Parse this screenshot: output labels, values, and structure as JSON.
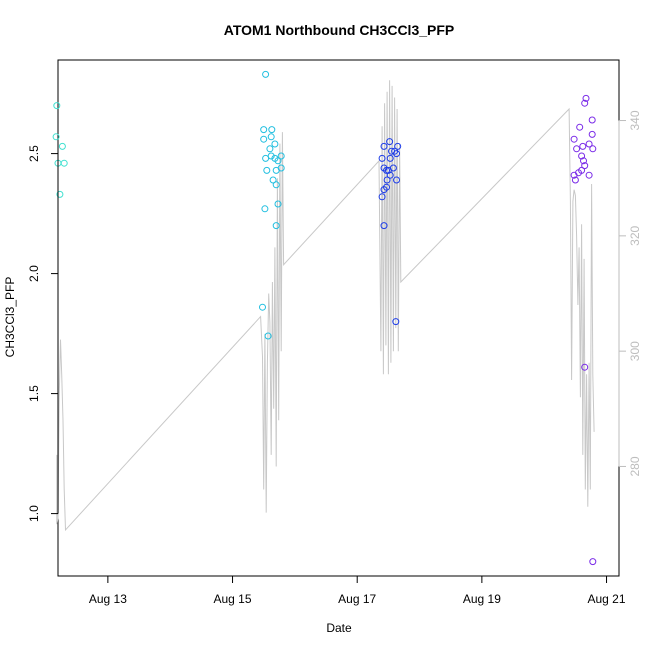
{
  "chart_data": {
    "type": "scatter",
    "title": "ATOM1 Northbound CH3CCl3_PFP",
    "xlabel": "Date",
    "ylabel": "CH3CCl3_PFP",
    "grid": false,
    "legend": "none",
    "x_unit": "days since Aug 12 00:00",
    "xlim": [
      12.2,
      21.2
    ],
    "ylim": [
      0.74,
      2.89
    ],
    "y2lim": [
      261.0,
      350.5
    ],
    "x_ticks": [
      {
        "value": 13,
        "label": "Aug 13"
      },
      {
        "value": 15,
        "label": "Aug 15"
      },
      {
        "value": 17,
        "label": "Aug 17"
      },
      {
        "value": 19,
        "label": "Aug 19"
      },
      {
        "value": 21,
        "label": "Aug 21"
      }
    ],
    "y_ticks": [
      {
        "value": 1.0,
        "label": "1.0"
      },
      {
        "value": 1.5,
        "label": "1.5"
      },
      {
        "value": 2.0,
        "label": "2.0"
      },
      {
        "value": 2.5,
        "label": "2.5"
      }
    ],
    "y2_ticks": [
      {
        "value": 280,
        "label": "280"
      },
      {
        "value": 300,
        "label": "300"
      },
      {
        "value": 320,
        "label": "320"
      },
      {
        "value": 340,
        "label": "340"
      }
    ],
    "series": [
      {
        "color": "#40e0d0",
        "points": [
          [
            12.18,
            2.7
          ],
          [
            12.17,
            2.57
          ],
          [
            12.27,
            2.53
          ],
          [
            12.2,
            2.46
          ],
          [
            12.3,
            2.46
          ],
          [
            12.23,
            2.33
          ]
        ]
      },
      {
        "color": "#22bfe0",
        "points": [
          [
            15.53,
            2.83
          ],
          [
            15.5,
            2.6
          ],
          [
            15.63,
            2.6
          ],
          [
            15.5,
            2.56
          ],
          [
            15.62,
            2.57
          ],
          [
            15.68,
            2.54
          ],
          [
            15.6,
            2.52
          ],
          [
            15.53,
            2.48
          ],
          [
            15.62,
            2.49
          ],
          [
            15.68,
            2.48
          ],
          [
            15.78,
            2.49
          ],
          [
            15.73,
            2.47
          ],
          [
            15.55,
            2.43
          ],
          [
            15.7,
            2.43
          ],
          [
            15.78,
            2.44
          ],
          [
            15.65,
            2.39
          ],
          [
            15.7,
            2.37
          ],
          [
            15.73,
            2.29
          ],
          [
            15.52,
            2.27
          ],
          [
            15.7,
            2.2
          ],
          [
            15.48,
            1.86
          ],
          [
            15.57,
            1.74
          ]
        ]
      },
      {
        "color": "#1f3ee8",
        "points": [
          [
            17.52,
            2.55
          ],
          [
            17.43,
            2.53
          ],
          [
            17.65,
            2.53
          ],
          [
            17.55,
            2.51
          ],
          [
            17.6,
            2.51
          ],
          [
            17.63,
            2.5
          ],
          [
            17.4,
            2.48
          ],
          [
            17.53,
            2.48
          ],
          [
            17.43,
            2.44
          ],
          [
            17.5,
            2.43
          ],
          [
            17.58,
            2.44
          ],
          [
            17.47,
            2.43
          ],
          [
            17.53,
            2.41
          ],
          [
            17.48,
            2.39
          ],
          [
            17.63,
            2.39
          ],
          [
            17.47,
            2.36
          ],
          [
            17.43,
            2.35
          ],
          [
            17.4,
            2.32
          ],
          [
            17.43,
            2.2
          ],
          [
            17.62,
            1.8
          ]
        ]
      },
      {
        "color": "#7a2be8",
        "points": [
          [
            20.67,
            2.73
          ],
          [
            20.65,
            2.71
          ],
          [
            20.77,
            2.64
          ],
          [
            20.57,
            2.61
          ],
          [
            20.77,
            2.58
          ],
          [
            20.48,
            2.56
          ],
          [
            20.72,
            2.54
          ],
          [
            20.52,
            2.52
          ],
          [
            20.62,
            2.53
          ],
          [
            20.78,
            2.52
          ],
          [
            20.6,
            2.49
          ],
          [
            20.63,
            2.47
          ],
          [
            20.65,
            2.45
          ],
          [
            20.6,
            2.43
          ],
          [
            20.55,
            2.42
          ],
          [
            20.48,
            2.41
          ],
          [
            20.72,
            2.41
          ],
          [
            20.5,
            2.39
          ],
          [
            20.65,
            1.61
          ],
          [
            20.78,
            0.8
          ]
        ]
      }
    ],
    "secondary_series": {
      "name": "",
      "color": "#c8c8c8",
      "axis": "right",
      "points": [
        [
          12.18,
          282
        ],
        [
          12.18,
          270
        ],
        [
          12.2,
          271
        ],
        [
          12.22,
          292
        ],
        [
          12.24,
          302
        ],
        [
          12.26,
          296
        ],
        [
          12.28,
          288
        ],
        [
          12.3,
          276
        ],
        [
          12.32,
          269
        ],
        [
          15.45,
          306
        ],
        [
          15.48,
          299
        ],
        [
          15.5,
          276
        ],
        [
          15.52,
          303
        ],
        [
          15.54,
          272
        ],
        [
          15.56,
          298
        ],
        [
          15.58,
          310
        ],
        [
          15.6,
          305
        ],
        [
          15.62,
          282
        ],
        [
          15.64,
          312
        ],
        [
          15.66,
          290
        ],
        [
          15.68,
          318
        ],
        [
          15.7,
          280
        ],
        [
          15.72,
          330
        ],
        [
          15.74,
          288
        ],
        [
          15.76,
          336
        ],
        [
          15.78,
          300
        ],
        [
          15.8,
          338
        ],
        [
          15.82,
          315
        ],
        [
          17.35,
          333
        ],
        [
          17.38,
          300
        ],
        [
          17.4,
          339
        ],
        [
          17.42,
          296
        ],
        [
          17.44,
          343
        ],
        [
          17.46,
          301
        ],
        [
          17.48,
          345
        ],
        [
          17.5,
          296
        ],
        [
          17.52,
          347
        ],
        [
          17.54,
          298
        ],
        [
          17.56,
          346
        ],
        [
          17.58,
          300
        ],
        [
          17.6,
          344
        ],
        [
          17.62,
          304
        ],
        [
          17.64,
          342
        ],
        [
          17.66,
          300
        ],
        [
          17.68,
          336
        ],
        [
          17.7,
          312
        ],
        [
          20.4,
          342
        ],
        [
          20.42,
          326
        ],
        [
          20.44,
          295
        ],
        [
          20.46,
          326
        ],
        [
          20.48,
          328
        ],
        [
          20.5,
          327
        ],
        [
          20.52,
          320
        ],
        [
          20.54,
          308
        ],
        [
          20.56,
          318
        ],
        [
          20.58,
          292
        ],
        [
          20.6,
          322
        ],
        [
          20.62,
          282
        ],
        [
          20.64,
          316
        ],
        [
          20.66,
          276
        ],
        [
          20.68,
          296
        ],
        [
          20.7,
          273
        ],
        [
          20.72,
          298
        ],
        [
          20.74,
          276
        ],
        [
          20.76,
          329
        ],
        [
          20.78,
          296
        ],
        [
          20.8,
          286
        ]
      ]
    }
  }
}
